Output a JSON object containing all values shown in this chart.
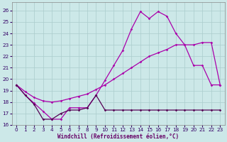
{
  "xlabel": "Windchill (Refroidissement éolien,°C)",
  "xlim": [
    -0.5,
    23.5
  ],
  "ylim": [
    16,
    26.7
  ],
  "yticks": [
    16,
    17,
    18,
    19,
    20,
    21,
    22,
    23,
    24,
    25,
    26
  ],
  "xticks": [
    0,
    1,
    2,
    3,
    4,
    5,
    6,
    7,
    8,
    9,
    10,
    11,
    12,
    13,
    14,
    15,
    16,
    17,
    18,
    19,
    20,
    21,
    22,
    23
  ],
  "bg_color": "#cce8e8",
  "grid_color": "#aacccc",
  "line_color": "#aa00aa",
  "line_color_dark": "#550055",
  "line1_y": [
    19.5,
    18.6,
    17.9,
    17.2,
    16.5,
    16.5,
    17.5,
    17.5,
    17.5,
    18.6,
    19.9,
    21.2,
    22.5,
    24.4,
    25.9,
    25.3,
    25.9,
    25.5,
    24.0,
    23.0,
    21.2,
    21.2,
    19.5,
    19.5
  ],
  "line2_y": [
    19.5,
    18.9,
    18.4,
    18.1,
    18.0,
    18.1,
    18.3,
    18.5,
    18.7,
    19.1,
    19.5,
    20.0,
    20.5,
    21.0,
    21.5,
    22.0,
    22.3,
    22.6,
    23.0,
    23.0,
    23.0,
    23.2,
    23.2,
    19.5
  ],
  "line3_y": [
    19.5,
    18.6,
    17.8,
    16.5,
    16.5,
    17.0,
    17.3,
    17.3,
    17.5,
    18.6,
    17.3,
    17.3,
    17.3,
    17.3,
    17.3,
    17.3,
    17.3,
    17.3,
    17.3,
    17.3,
    17.3,
    17.3,
    17.3,
    17.3
  ]
}
